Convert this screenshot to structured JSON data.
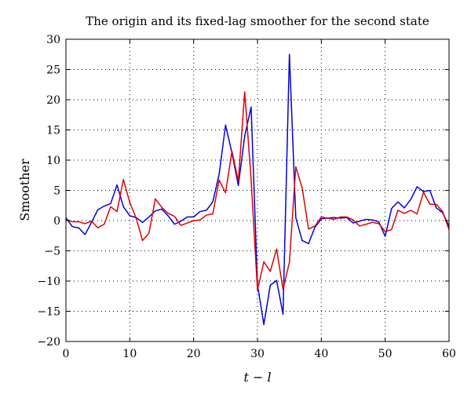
{
  "chart_data": {
    "type": "line",
    "title": "The origin and its fixed-lag smoother for the second state",
    "xlabel": "t − l",
    "ylabel": "Smoother",
    "xlim": [
      0,
      60
    ],
    "ylim": [
      -20,
      30
    ],
    "xticks": [
      0,
      10,
      20,
      30,
      40,
      50,
      60
    ],
    "yticks": [
      -20,
      -15,
      -10,
      -5,
      0,
      5,
      10,
      15,
      20,
      25,
      30
    ],
    "grid": true,
    "x": [
      0,
      1,
      2,
      3,
      4,
      5,
      6,
      7,
      8,
      9,
      10,
      11,
      12,
      13,
      14,
      15,
      16,
      17,
      18,
      19,
      20,
      21,
      22,
      23,
      24,
      25,
      26,
      27,
      28,
      29,
      30,
      31,
      32,
      33,
      34,
      35,
      36,
      37,
      38,
      39,
      40,
      41,
      42,
      43,
      44,
      45,
      46,
      47,
      48,
      49,
      50,
      51,
      52,
      53,
      54,
      55,
      56,
      57,
      58,
      59,
      60
    ],
    "series": [
      {
        "color": "#0000dd",
        "values": [
          0.5,
          -1.0,
          -1.2,
          -2.3,
          -0.3,
          1.8,
          2.4,
          2.8,
          5.9,
          2.3,
          0.8,
          0.5,
          -0.3,
          0.6,
          1.6,
          1.9,
          0.8,
          -0.6,
          -0.1,
          0.6,
          0.6,
          1.5,
          1.7,
          3.1,
          7.7,
          15.8,
          11.2,
          5.8,
          14.0,
          18.8,
          -10.6,
          -17.2,
          -10.7,
          -9.9,
          -15.5,
          27.5,
          0.5,
          -3.3,
          -3.8,
          -1.1,
          0.3,
          0.4,
          0.5,
          0.4,
          0.5,
          -0.4,
          -0.1,
          0.2,
          0.1,
          -0.2,
          -2.6,
          2.0,
          3.1,
          2.1,
          3.5,
          5.6,
          4.8,
          5.0,
          2.1,
          1.3,
          -0.9
        ]
      },
      {
        "color": "#dd0000",
        "values": [
          0.2,
          -0.2,
          -0.2,
          -0.5,
          -0.1,
          -1.2,
          -0.6,
          2.3,
          1.5,
          6.8,
          3.0,
          0.4,
          -3.3,
          -2.1,
          3.6,
          2.2,
          1.2,
          0.7,
          -0.8,
          -0.4,
          0.0,
          0.1,
          0.9,
          1.1,
          6.7,
          4.6,
          11.5,
          6.5,
          21.3,
          6.8,
          -11.5,
          -6.8,
          -8.4,
          -4.7,
          -11.4,
          -6.9,
          8.9,
          5.4,
          -1.4,
          -0.9,
          0.6,
          0.4,
          0.2,
          0.6,
          0.6,
          0.1,
          -0.9,
          -0.6,
          -0.3,
          -0.5,
          -1.8,
          -1.5,
          1.7,
          1.2,
          1.7,
          1.1,
          4.7,
          2.7,
          2.7,
          1.5,
          -1.5
        ]
      }
    ]
  }
}
